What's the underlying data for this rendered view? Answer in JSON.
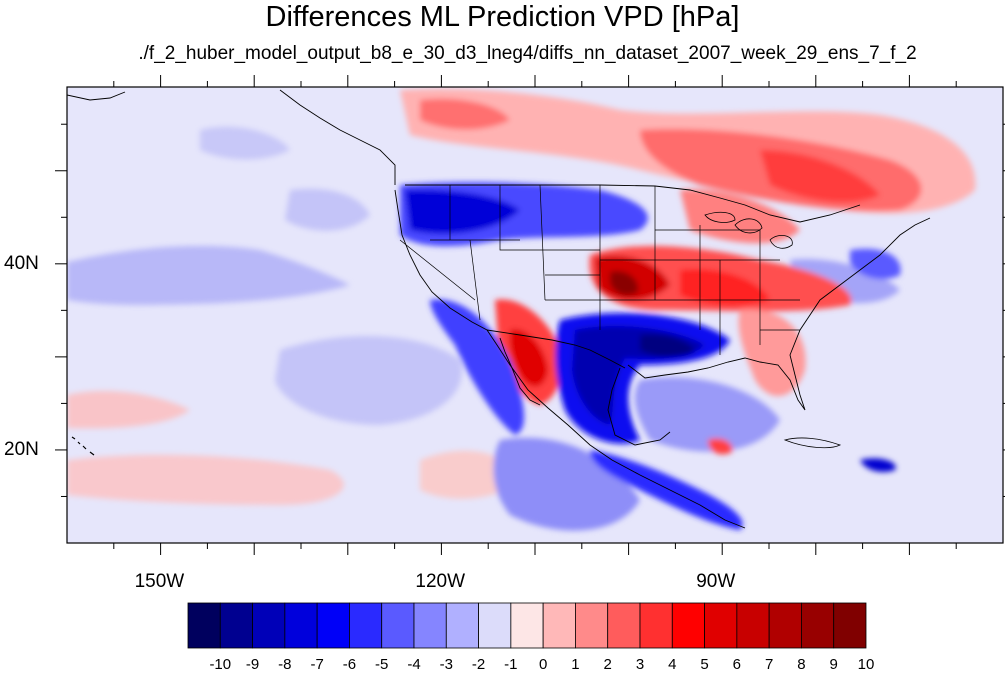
{
  "title": "Differences ML Prediction VPD [hPa]",
  "subtitle": "./f_2_huber_model_output_b8_e_30_d3_lneg4/diffs_nn_dataset_2007_week_29_ens_7_f_2",
  "map": {
    "lon_range": [
      -160,
      -60
    ],
    "lat_range": [
      10,
      59
    ],
    "lat_labels": [
      {
        "value": 40,
        "text": "40N"
      },
      {
        "value": 20,
        "text": "20N"
      }
    ],
    "lon_labels": [
      {
        "value": -150,
        "text": "150W"
      },
      {
        "value": -120,
        "text": "120W"
      },
      {
        "value": -90,
        "text": "90W"
      }
    ],
    "field_description": "VPD prediction differences; strong positive over Great Plains, Southwest and Canada, strong negative over Pacific Northwest, Texas and Mexico"
  },
  "colorbar": {
    "levels": [
      "-10",
      "-9",
      "-8",
      "-7",
      "-6",
      "-5",
      "-4",
      "-3",
      "-2",
      "-1",
      "0",
      "1",
      "2",
      "3",
      "4",
      "5",
      "6",
      "7",
      "8",
      "9",
      "10"
    ],
    "colors": [
      "#00005e",
      "#000090",
      "#0000b8",
      "#0000dc",
      "#0000f8",
      "#2a2aff",
      "#5a5aff",
      "#8585ff",
      "#b0b0ff",
      "#dcdcfa",
      "#fde6e6",
      "#ffb8b8",
      "#ff8a8a",
      "#ff5c5c",
      "#ff3030",
      "#ff0000",
      "#e00000",
      "#c80000",
      "#b00000",
      "#980000",
      "#800000"
    ]
  }
}
